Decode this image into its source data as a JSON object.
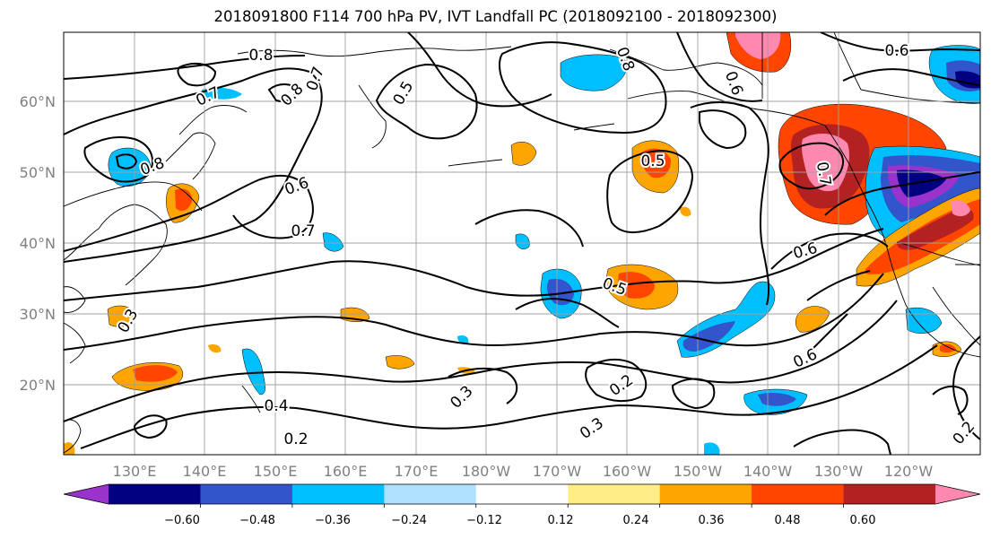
{
  "title": "2018091800 F114 700 hPa PV, IVT Landfall PC (2018092100 - 2018092300)",
  "map": {
    "lat_labels": [
      "60°N",
      "50°N",
      "40°N",
      "30°N",
      "20°N"
    ],
    "lon_labels": [
      "130°E",
      "140°E",
      "150°E",
      "160°E",
      "170°E",
      "180°W",
      "170°W",
      "160°W",
      "150°W",
      "140°W",
      "130°W",
      "120°W"
    ],
    "contour_levels": [
      "0.8",
      "0.7",
      "0.6",
      "0.5",
      "0.4",
      "0.3",
      "0.2"
    ],
    "contour_labels": [
      {
        "text": "0.8",
        "kind": "pv"
      },
      {
        "text": "0.7",
        "kind": "pv"
      },
      {
        "text": "0.8",
        "kind": "pv"
      },
      {
        "text": "0.7",
        "kind": "pv"
      },
      {
        "text": "0.5",
        "kind": "pv"
      },
      {
        "text": "0.8",
        "kind": "pv"
      },
      {
        "text": "0.6",
        "kind": "pv"
      },
      {
        "text": "0.7",
        "kind": "pv"
      },
      {
        "text": "0.5",
        "kind": "pv"
      },
      {
        "text": "0.6",
        "kind": "pv"
      },
      {
        "text": "0.5",
        "kind": "pv"
      },
      {
        "text": "0.6",
        "kind": "pv"
      },
      {
        "text": "0.2",
        "kind": "pv"
      },
      {
        "text": "0.3",
        "kind": "pv"
      },
      {
        "text": "0.3",
        "kind": "pv"
      },
      {
        "text": "0.4",
        "kind": "pv"
      },
      {
        "text": "0.2",
        "kind": "pv"
      },
      {
        "text": "0.3",
        "kind": "pv"
      },
      {
        "text": "0.8",
        "kind": "pv"
      },
      {
        "text": "0.6",
        "kind": "pv"
      },
      {
        "text": "0.7",
        "kind": "pv"
      },
      {
        "text": "0.6",
        "kind": "pv"
      },
      {
        "text": "0.2",
        "kind": "pv"
      }
    ]
  },
  "colorbar": {
    "tick_labels": [
      "−0.60",
      "−0.48",
      "−0.36",
      "−0.24",
      "−0.12",
      "0.12",
      "0.24",
      "0.36",
      "0.48",
      "0.60"
    ],
    "colors": [
      "#9933cc",
      "#000080",
      "#3355cc",
      "#00bfff",
      "#b0e0ff",
      "#ffffff",
      "#ffee88",
      "#ffa500",
      "#ff4500",
      "#b22222",
      "#ff88b0"
    ]
  }
}
